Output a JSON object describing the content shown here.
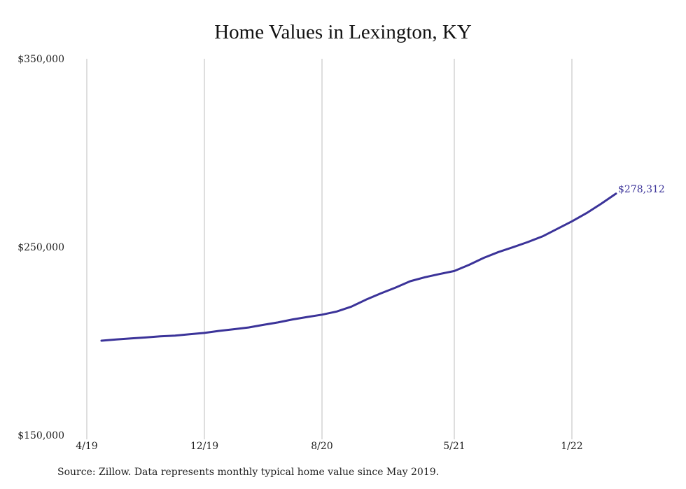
{
  "title": "Home Values in Lexington, KY",
  "source": "Source: Zillow. Data represents monthly typical home value since May 2019.",
  "chart_data": {
    "type": "line",
    "title": "Home Values in Lexington, KY",
    "xlabel": "",
    "ylabel": "",
    "x_tick_labels": [
      "4/19",
      "12/19",
      "8/20",
      "5/21",
      "1/22"
    ],
    "y_tick_labels": [
      "$150,000",
      "$250,000",
      "$350,000"
    ],
    "ylim": [
      150000,
      350000
    ],
    "grid": "vertical",
    "series": [
      {
        "color": "#3b3399",
        "x": [
          "5/19",
          "6/19",
          "7/19",
          "8/19",
          "9/19",
          "10/19",
          "11/19",
          "12/19",
          "1/20",
          "2/20",
          "3/20",
          "4/20",
          "5/20",
          "6/20",
          "7/20",
          "8/20",
          "9/20",
          "10/20",
          "11/20",
          "12/20",
          "1/21",
          "2/21",
          "3/21",
          "4/21",
          "5/21",
          "6/21",
          "7/21",
          "8/21",
          "9/21",
          "10/21",
          "11/21",
          "12/21",
          "1/22",
          "2/22",
          "3/22",
          "4/22"
        ],
        "values": [
          200200,
          200800,
          201400,
          201900,
          202500,
          202900,
          203600,
          204300,
          205400,
          206300,
          207200,
          208600,
          209900,
          211500,
          212800,
          214000,
          215700,
          218300,
          222000,
          225300,
          228400,
          231800,
          233900,
          235600,
          237200,
          240500,
          244200,
          247300,
          249900,
          252600,
          255600,
          259600,
          263600,
          268000,
          273000,
          278312
        ]
      }
    ],
    "end_label": "$278,312"
  }
}
